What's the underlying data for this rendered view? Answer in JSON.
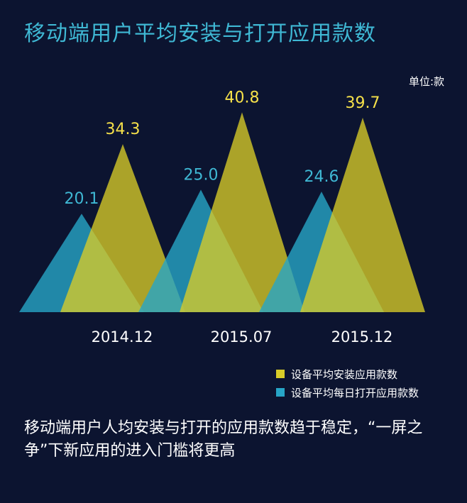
{
  "title": "移动端用户平均安装与打开应用款数",
  "unit_label": "单位:款",
  "chart_data": {
    "type": "area",
    "categories": [
      "2014.12",
      "2015.07",
      "2015.12"
    ],
    "series": [
      {
        "name": "设备平均每日打开应用款数",
        "values": [
          20.1,
          25.0,
          24.6
        ],
        "color": "#27a5c7"
      },
      {
        "name": "设备平均安装应用款数",
        "values": [
          34.3,
          40.8,
          39.7
        ],
        "color": "#d8cc28"
      }
    ],
    "ylim": [
      0,
      42
    ],
    "grid": false,
    "legend": "bottom-right"
  },
  "colors": {
    "background": "#0c1430",
    "blue_label": "#3fb8d4",
    "yellow_label": "#f5e04a"
  },
  "footer": "移动端用户人均安装与打开的应用款数趋于稳定，“一屏之争”下新应用的进入门槛将更高"
}
